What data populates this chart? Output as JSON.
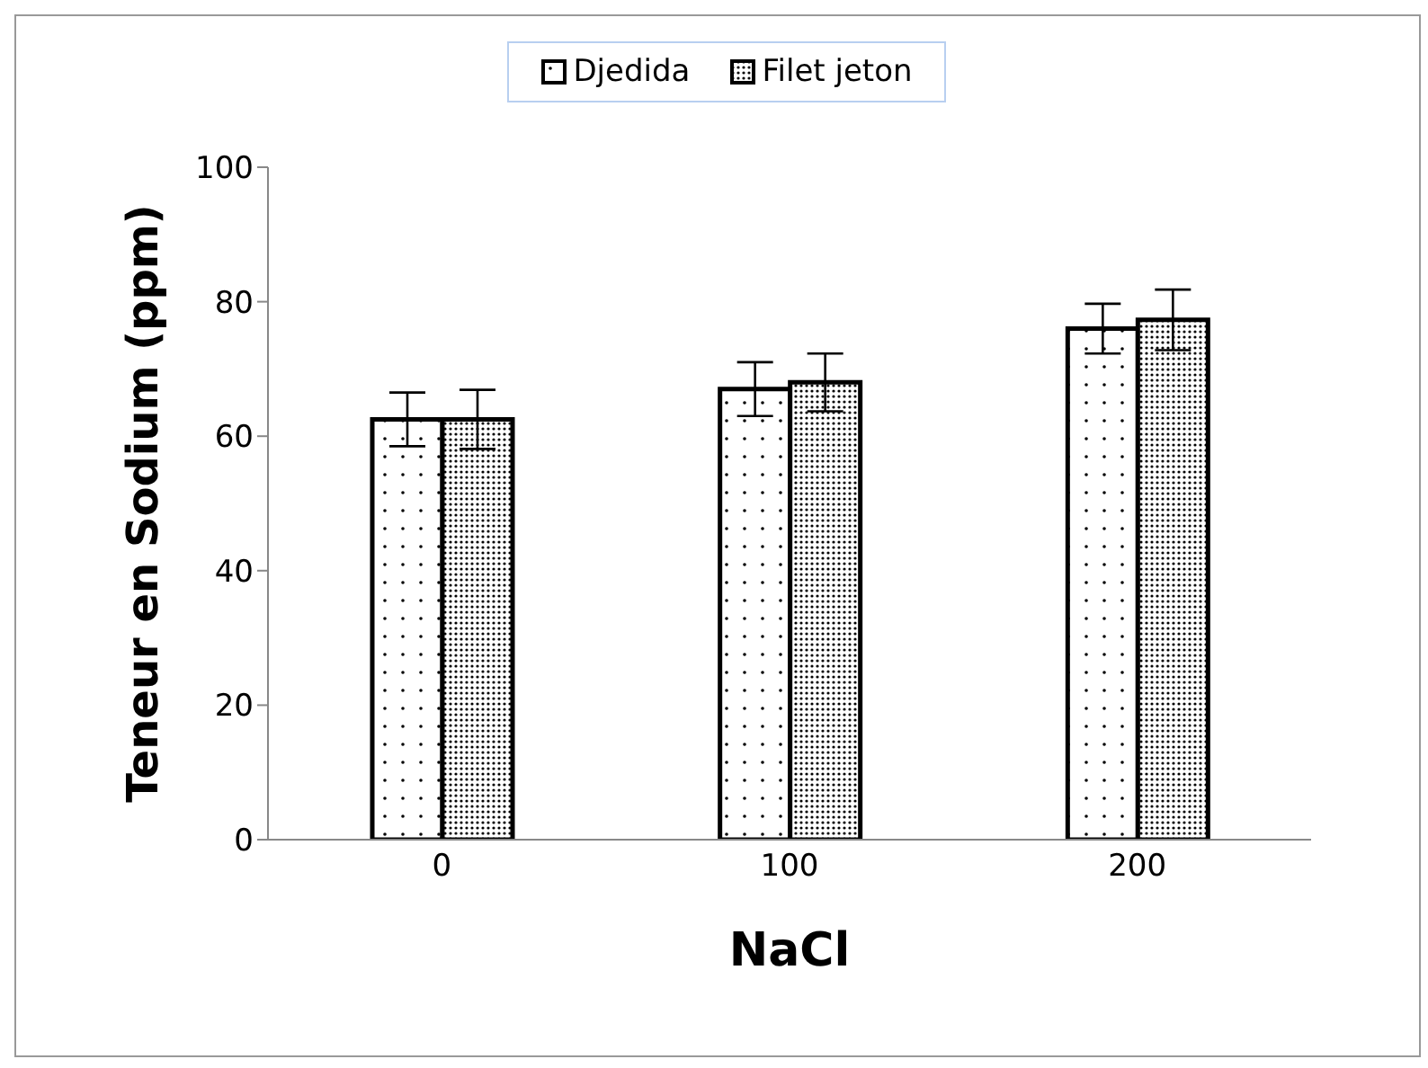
{
  "chart_data": {
    "type": "bar",
    "xlabel": "NaCl",
    "ylabel": "Teneur en Sodium (ppm)",
    "categories": [
      "0",
      "100",
      "200"
    ],
    "series": [
      {
        "name": "Djedida",
        "color": "#000000",
        "values": [
          62.5,
          67,
          76
        ],
        "errors": [
          4,
          4,
          3.7
        ]
      },
      {
        "name": "Filet jeton",
        "color": "#000000",
        "values": [
          62.5,
          68,
          77.3
        ],
        "errors": [
          4.4,
          4.3,
          4.5
        ]
      }
    ],
    "ylim": [
      0,
      100
    ],
    "yticks": [
      0,
      20,
      40,
      60,
      80,
      100
    ],
    "grid": false,
    "legend": "top"
  }
}
